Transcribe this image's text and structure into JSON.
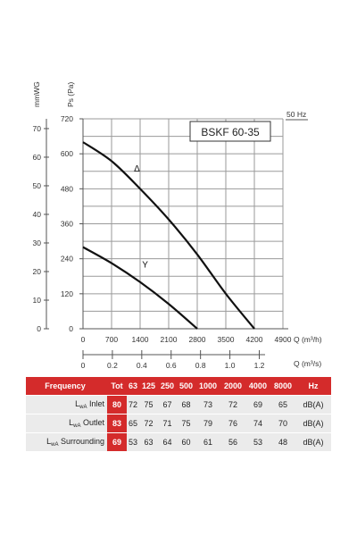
{
  "model": "BSKF 60-35",
  "frequency": "50 Hz",
  "chart_data": {
    "type": "line",
    "title": "BSKF 60-35",
    "left_axis_label": "mmWG",
    "right_axis_label": "Ps (Pa)",
    "mmwg_ticks": [
      "70",
      "60",
      "50",
      "40",
      "30",
      "20",
      "10",
      "0"
    ],
    "pa_ticks": [
      "720",
      "600",
      "480",
      "360",
      "240",
      "120",
      "0"
    ],
    "x_label_m3h": "Q (m³/h)",
    "x_ticks_m3h": [
      "0",
      "700",
      "1400",
      "2100",
      "2800",
      "3500",
      "4200",
      "4900"
    ],
    "x_label_m3s": "Q (m³/s)",
    "x_ticks_m3s": [
      "0",
      "0.2",
      "0.4",
      "0.6",
      "0.8",
      "1.0",
      "1.2"
    ],
    "xlim": [
      0,
      4900
    ],
    "ylim": [
      0,
      720
    ],
    "series": [
      {
        "name": "Δ",
        "x": [
          0,
          700,
          1400,
          2100,
          2800,
          3500,
          4200
        ],
        "y": [
          640,
          575,
          480,
          375,
          255,
          120,
          0
        ]
      },
      {
        "name": "Y",
        "x": [
          0,
          700,
          1400,
          2100,
          2800
        ],
        "y": [
          280,
          225,
          160,
          85,
          0
        ]
      }
    ]
  },
  "table": {
    "header": [
      "Frequency",
      "Tot",
      "63",
      "125",
      "250",
      "500",
      "1000",
      "2000",
      "4000",
      "8000",
      "Hz"
    ],
    "rows": [
      {
        "label_main": "L",
        "label_sub": "wA",
        "label_rest": " Inlet",
        "tot": "80",
        "values": [
          "72",
          "75",
          "67",
          "68",
          "73",
          "72",
          "69",
          "65"
        ],
        "unit": "dB(A)"
      },
      {
        "label_main": "L",
        "label_sub": "wA",
        "label_rest": " Outlet",
        "tot": "83",
        "values": [
          "65",
          "72",
          "71",
          "75",
          "79",
          "76",
          "74",
          "70"
        ],
        "unit": "dB(A)"
      },
      {
        "label_main": "L",
        "label_sub": "wA",
        "label_rest": " Surrounding",
        "tot": "69",
        "values": [
          "53",
          "63",
          "64",
          "60",
          "61",
          "56",
          "53",
          "48"
        ],
        "unit": "dB(A)"
      }
    ]
  }
}
